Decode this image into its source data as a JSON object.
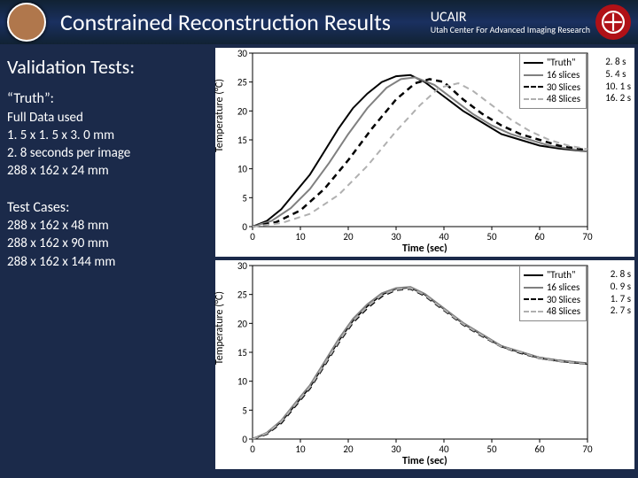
{
  "header": {
    "title": "Constrained Reconstruction Results",
    "ucair_label": "UCAIR",
    "ucair_sub": "Utah Center For Advanced Imaging Research"
  },
  "left": {
    "heading": "Validation Tests:",
    "truth_head": "“Truth”:",
    "truth_lines": [
      "Full Data used",
      "1. 5 x 1. 5 x 3. 0 mm",
      "2. 8 seconds per image",
      "288 x 162 x 24 mm"
    ],
    "cases_head": "Test Cases:",
    "cases_lines": [
      "288 x 162 x 48 mm",
      "288 x 162 x 90 mm",
      "288 x 162 x 144 mm"
    ]
  },
  "chart_common": {
    "xlabel": "Time (sec)",
    "ylabel": "Temperature (°C)",
    "xlim": [
      0,
      70
    ],
    "ylim": [
      0,
      30
    ],
    "xticks": [
      0,
      10,
      20,
      30,
      40,
      50,
      60,
      70
    ],
    "yticks": [
      0,
      5,
      10,
      15,
      20,
      25,
      30
    ],
    "plot_bg": "#ffffff",
    "axis_color": "#000000",
    "label_fontsize": 12,
    "tick_fontsize": 11
  },
  "legend_items": [
    {
      "label": "\"Truth\"",
      "color": "#000000",
      "dash": "solid",
      "width": 2
    },
    {
      "label": "16 slices",
      "color": "#808080",
      "dash": "solid",
      "width": 2
    },
    {
      "label": "30 Slices",
      "color": "#000000",
      "dash": "dashed",
      "width": 2.5
    },
    {
      "label": "48 Slices",
      "color": "#b0b0b0",
      "dash": "dashed",
      "width": 2
    }
  ],
  "charts": [
    {
      "timings": [
        "2. 8 s",
        "5. 4 s",
        "10. 1 s",
        "16. 2 s"
      ],
      "series": [
        {
          "name": "\"Truth\"",
          "color": "#000000",
          "dash": "solid",
          "width": 2,
          "points": [
            [
              0,
              0
            ],
            [
              3,
              1
            ],
            [
              6,
              3
            ],
            [
              9,
              6
            ],
            [
              12,
              9
            ],
            [
              15,
              13
            ],
            [
              18,
              17
            ],
            [
              21,
              20.5
            ],
            [
              24,
              23
            ],
            [
              27,
              25
            ],
            [
              30,
              26
            ],
            [
              33,
              26.2
            ],
            [
              36,
              25
            ],
            [
              40,
              22.5
            ],
            [
              44,
              20
            ],
            [
              48,
              18
            ],
            [
              52,
              16
            ],
            [
              56,
              15
            ],
            [
              60,
              14
            ],
            [
              64,
              13.5
            ],
            [
              70,
              13
            ]
          ]
        },
        {
          "name": "16 slices",
          "color": "#808080",
          "dash": "solid",
          "width": 2,
          "points": [
            [
              0,
              0
            ],
            [
              4,
              1
            ],
            [
              8,
              3.2
            ],
            [
              12,
              6.5
            ],
            [
              16,
              11
            ],
            [
              20,
              16
            ],
            [
              24,
              20.5
            ],
            [
              28,
              24
            ],
            [
              31,
              25.5
            ],
            [
              34,
              25.8
            ],
            [
              38,
              24.5
            ],
            [
              42,
              22
            ],
            [
              46,
              19.5
            ],
            [
              50,
              17.5
            ],
            [
              54,
              16
            ],
            [
              58,
              15
            ],
            [
              62,
              14
            ],
            [
              66,
              13.5
            ],
            [
              70,
              13
            ]
          ]
        },
        {
          "name": "30 Slices",
          "color": "#000000",
          "dash": "dashed",
          "width": 2.5,
          "points": [
            [
              0,
              0
            ],
            [
              5,
              0.8
            ],
            [
              10,
              2.8
            ],
            [
              15,
              6.5
            ],
            [
              20,
              11.5
            ],
            [
              25,
              17
            ],
            [
              30,
              22
            ],
            [
              34,
              24.8
            ],
            [
              37,
              25.5
            ],
            [
              40,
              25
            ],
            [
              44,
              22
            ],
            [
              48,
              19.5
            ],
            [
              52,
              17.5
            ],
            [
              56,
              16
            ],
            [
              60,
              15
            ],
            [
              64,
              14
            ],
            [
              70,
              13.2
            ]
          ]
        },
        {
          "name": "48 Slices",
          "color": "#b0b0b0",
          "dash": "dashed",
          "width": 2,
          "points": [
            [
              0,
              0
            ],
            [
              6,
              0.6
            ],
            [
              12,
              2.2
            ],
            [
              18,
              5.5
            ],
            [
              24,
              10.5
            ],
            [
              30,
              16.5
            ],
            [
              35,
              21
            ],
            [
              39,
              24
            ],
            [
              43,
              24.8
            ],
            [
              46,
              23.5
            ],
            [
              50,
              21
            ],
            [
              54,
              18.5
            ],
            [
              58,
              16.5
            ],
            [
              62,
              15
            ],
            [
              66,
              14
            ],
            [
              70,
              13.4
            ]
          ]
        }
      ]
    },
    {
      "timings": [
        "2. 8 s",
        "0. 9 s",
        "1. 7 s",
        "2. 7 s"
      ],
      "series": [
        {
          "name": "\"Truth\"",
          "color": "#000000",
          "dash": "solid",
          "width": 2,
          "points": [
            [
              0,
              0
            ],
            [
              3,
              1
            ],
            [
              6,
              3
            ],
            [
              9,
              6
            ],
            [
              12,
              9
            ],
            [
              15,
              13
            ],
            [
              18,
              17
            ],
            [
              21,
              20.5
            ],
            [
              24,
              23
            ],
            [
              27,
              25
            ],
            [
              30,
              26
            ],
            [
              33,
              26.2
            ],
            [
              36,
              25
            ],
            [
              40,
              22.5
            ],
            [
              44,
              20
            ],
            [
              48,
              18
            ],
            [
              52,
              16
            ],
            [
              56,
              15
            ],
            [
              60,
              14
            ],
            [
              64,
              13.5
            ],
            [
              70,
              13
            ]
          ]
        },
        {
          "name": "16 slices",
          "color": "#808080",
          "dash": "solid",
          "width": 2,
          "points": [
            [
              0,
              0
            ],
            [
              3,
              1.1
            ],
            [
              6,
              3.2
            ],
            [
              9,
              6.3
            ],
            [
              12,
              9.3
            ],
            [
              15,
              13.3
            ],
            [
              18,
              17.3
            ],
            [
              21,
              20.8
            ],
            [
              24,
              23.3
            ],
            [
              27,
              25.2
            ],
            [
              30,
              26.1
            ],
            [
              33,
              26.3
            ],
            [
              36,
              25.1
            ],
            [
              40,
              22.6
            ],
            [
              44,
              20.1
            ],
            [
              48,
              18.1
            ],
            [
              52,
              16.1
            ],
            [
              56,
              15.1
            ],
            [
              60,
              14.1
            ],
            [
              64,
              13.6
            ],
            [
              70,
              13.1
            ]
          ]
        },
        {
          "name": "30 Slices",
          "color": "#000000",
          "dash": "dashed",
          "width": 2.5,
          "points": [
            [
              0,
              0
            ],
            [
              3,
              0.9
            ],
            [
              6,
              2.8
            ],
            [
              9,
              5.8
            ],
            [
              12,
              8.8
            ],
            [
              15,
              12.7
            ],
            [
              18,
              16.7
            ],
            [
              21,
              20.2
            ],
            [
              24,
              22.7
            ],
            [
              27,
              24.7
            ],
            [
              30,
              25.8
            ],
            [
              33,
              26.0
            ],
            [
              36,
              24.8
            ],
            [
              40,
              22.3
            ],
            [
              44,
              19.8
            ],
            [
              48,
              17.8
            ],
            [
              52,
              16.0
            ],
            [
              56,
              14.9
            ],
            [
              60,
              14.0
            ],
            [
              64,
              13.5
            ],
            [
              70,
              13.0
            ]
          ]
        },
        {
          "name": "48 Slices",
          "color": "#b0b0b0",
          "dash": "dashed",
          "width": 2,
          "points": [
            [
              0,
              0
            ],
            [
              3,
              1.0
            ],
            [
              6,
              3.0
            ],
            [
              9,
              6.0
            ],
            [
              12,
              9.0
            ],
            [
              15,
              12.9
            ],
            [
              18,
              16.9
            ],
            [
              21,
              20.4
            ],
            [
              24,
              22.9
            ],
            [
              27,
              24.9
            ],
            [
              30,
              25.9
            ],
            [
              33,
              26.1
            ],
            [
              36,
              24.9
            ],
            [
              40,
              22.4
            ],
            [
              44,
              19.9
            ],
            [
              48,
              17.9
            ],
            [
              52,
              16.0
            ],
            [
              56,
              15.0
            ],
            [
              60,
              14.0
            ],
            [
              64,
              13.5
            ],
            [
              70,
              13.0
            ]
          ]
        }
      ]
    }
  ]
}
